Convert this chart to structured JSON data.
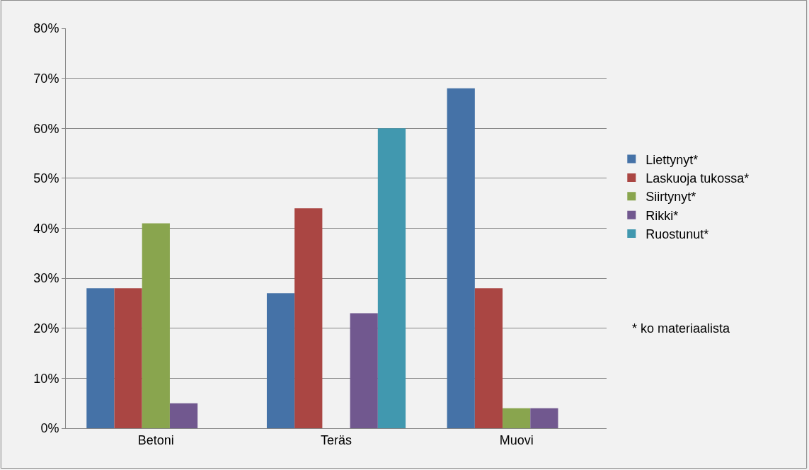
{
  "chart_data": {
    "type": "bar",
    "categories": [
      "Betoni",
      "Teräs",
      "Muovi"
    ],
    "series": [
      {
        "name": "Liettynyt*",
        "color": "#4572a7",
        "values": [
          28,
          27,
          68
        ]
      },
      {
        "name": "Laskuoja tukossa*",
        "color": "#aa4643",
        "values": [
          28,
          44,
          28
        ]
      },
      {
        "name": "Siirtynyt*",
        "color": "#89a54e",
        "values": [
          41,
          0,
          4
        ]
      },
      {
        "name": "Rikki*",
        "color": "#71588f",
        "values": [
          5,
          23,
          4
        ]
      },
      {
        "name": "Ruostunut*",
        "color": "#4198af",
        "values": [
          0,
          60,
          0
        ]
      }
    ],
    "ylim": [
      0,
      80
    ],
    "yticks": [
      {
        "value": 0,
        "label": "0%"
      },
      {
        "value": 10,
        "label": "10%"
      },
      {
        "value": 20,
        "label": "20%"
      },
      {
        "value": 30,
        "label": "30%"
      },
      {
        "value": 40,
        "label": "40%"
      },
      {
        "value": 50,
        "label": "50%"
      },
      {
        "value": 60,
        "label": "60%"
      },
      {
        "value": 70,
        "label": "70%"
      },
      {
        "value": 80,
        "label": "80%"
      }
    ],
    "grid": "y",
    "legend": "right",
    "annotations": [
      "* ko materiaalista"
    ]
  }
}
